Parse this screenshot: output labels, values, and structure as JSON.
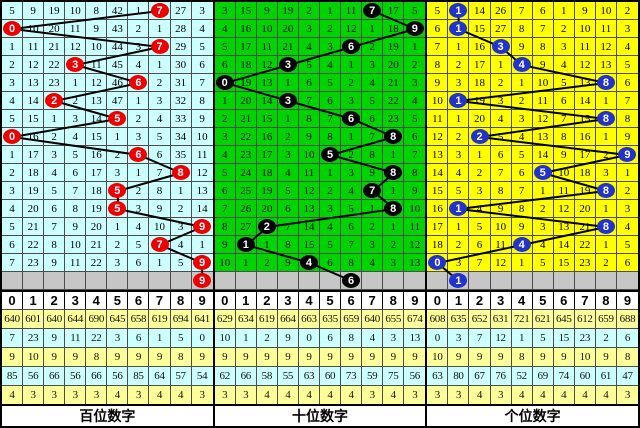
{
  "digit_headers": [
    "0",
    "1",
    "2",
    "3",
    "4",
    "5",
    "6",
    "7",
    "8",
    "9"
  ],
  "colors": {
    "gray_row": "#C6C6C6",
    "stat_yellow": "#FFFF99",
    "stat_cyan": "#CCFFFF",
    "trend_line": "#000000",
    "grid_line": "#4c4c4c",
    "hundreds_bg": "#CCFFFF",
    "tens_bg": "#00D400",
    "units_bg": "#FFFF00",
    "hundreds_circle": "#EE0000",
    "tens_circle": "#000000",
    "units_circle": "#2233CC"
  },
  "chart_data": [
    {
      "type": "line",
      "title": "百位数字 trend",
      "x": [
        1,
        2,
        3,
        4,
        5,
        6,
        7,
        8,
        9,
        10,
        11,
        12,
        13,
        14,
        15,
        16
      ],
      "values": [
        7,
        0,
        7,
        3,
        6,
        2,
        5,
        0,
        6,
        8,
        5,
        5,
        9,
        7,
        9,
        9
      ],
      "ylim": [
        0,
        9
      ],
      "legend_position": "none"
    },
    {
      "type": "line",
      "title": "十位数字 trend",
      "x": [
        1,
        2,
        3,
        4,
        5,
        6,
        7,
        8,
        9,
        10,
        11,
        12,
        13,
        14,
        15,
        16
      ],
      "values": [
        7,
        9,
        6,
        3,
        0,
        3,
        6,
        8,
        5,
        8,
        7,
        8,
        2,
        1,
        4,
        6
      ],
      "ylim": [
        0,
        9
      ],
      "legend_position": "none"
    },
    {
      "type": "line",
      "title": "个位数字 trend",
      "x": [
        1,
        2,
        3,
        4,
        5,
        6,
        7,
        8,
        9,
        10,
        11,
        12,
        13,
        14,
        15,
        16
      ],
      "values": [
        1,
        1,
        3,
        4,
        8,
        1,
        8,
        2,
        9,
        5,
        8,
        1,
        8,
        4,
        0,
        1
      ],
      "ylim": [
        0,
        9
      ],
      "legend_position": "none"
    }
  ],
  "panels": [
    {
      "key": "hundreds",
      "footer": "百位数字",
      "theme": {
        "bg": "#CCFFFF",
        "circle": "#EE0000",
        "circle_text": "#FFFFFF"
      },
      "grid_rows": [
        [
          "5",
          "9",
          "19",
          "10",
          "8",
          "42",
          "1",
          "7",
          "27",
          "3"
        ],
        [
          "0",
          "10",
          "20",
          "11",
          "9",
          "43",
          "2",
          "1",
          "28",
          "4"
        ],
        [
          "1",
          "11",
          "21",
          "12",
          "10",
          "44",
          "3",
          "7",
          "29",
          "5"
        ],
        [
          "2",
          "12",
          "22",
          "3",
          "11",
          "45",
          "4",
          "1",
          "30",
          "6"
        ],
        [
          "3",
          "13",
          "23",
          "1",
          "12",
          "46",
          "6",
          "2",
          "31",
          "7"
        ],
        [
          "4",
          "14",
          "2",
          "2",
          "13",
          "47",
          "1",
          "3",
          "32",
          "8"
        ],
        [
          "5",
          "15",
          "1",
          "3",
          "14",
          "5",
          "2",
          "4",
          "33",
          "9"
        ],
        [
          "0",
          "16",
          "2",
          "4",
          "15",
          "1",
          "3",
          "5",
          "34",
          "10"
        ],
        [
          "1",
          "17",
          "3",
          "5",
          "16",
          "2",
          "6",
          "6",
          "35",
          "11"
        ],
        [
          "2",
          "18",
          "4",
          "6",
          "17",
          "3",
          "1",
          "7",
          "8",
          "12"
        ],
        [
          "3",
          "19",
          "5",
          "7",
          "18",
          "5",
          "2",
          "8",
          "1",
          "13"
        ],
        [
          "4",
          "20",
          "6",
          "8",
          "19",
          "5",
          "3",
          "9",
          "2",
          "14"
        ],
        [
          "5",
          "21",
          "7",
          "9",
          "20",
          "1",
          "4",
          "10",
          "3",
          "9"
        ],
        [
          "6",
          "22",
          "8",
          "10",
          "21",
          "2",
          "5",
          "7",
          "4",
          "1"
        ],
        [
          "7",
          "23",
          "9",
          "11",
          "22",
          "3",
          "6",
          "1",
          "5",
          "9"
        ]
      ],
      "hits": [
        7,
        0,
        7,
        3,
        6,
        2,
        5,
        0,
        6,
        8,
        5,
        5,
        9,
        7,
        9,
        9
      ],
      "stats": [
        [
          "640",
          "601",
          "640",
          "644",
          "690",
          "645",
          "658",
          "619",
          "694",
          "641"
        ],
        [
          "7",
          "23",
          "9",
          "11",
          "22",
          "3",
          "6",
          "1",
          "5",
          "0"
        ],
        [
          "9",
          "10",
          "9",
          "9",
          "8",
          "9",
          "9",
          "9",
          "8",
          "9"
        ],
        [
          "85",
          "56",
          "66",
          "56",
          "66",
          "56",
          "85",
          "64",
          "57",
          "54"
        ],
        [
          "4",
          "3",
          "3",
          "3",
          "3",
          "4",
          "3",
          "4",
          "4",
          "3"
        ]
      ]
    },
    {
      "key": "tens",
      "footer": "十位数字",
      "theme": {
        "bg": "#00D400",
        "circle": "#000000",
        "circle_text": "#FFFFFF"
      },
      "grid_rows": [
        [
          "3",
          "15",
          "9",
          "19",
          "2",
          "1",
          "11",
          "7",
          "17",
          "5"
        ],
        [
          "4",
          "16",
          "10",
          "20",
          "3",
          "2",
          "12",
          "1",
          "18",
          "9"
        ],
        [
          "5",
          "17",
          "11",
          "21",
          "4",
          "3",
          "6",
          "2",
          "19",
          "1"
        ],
        [
          "6",
          "18",
          "12",
          "3",
          "5",
          "4",
          "1",
          "3",
          "20",
          "2"
        ],
        [
          "0",
          "19",
          "13",
          "1",
          "6",
          "5",
          "2",
          "4",
          "21",
          "3"
        ],
        [
          "1",
          "20",
          "14",
          "3",
          "7",
          "6",
          "3",
          "5",
          "22",
          "4"
        ],
        [
          "2",
          "21",
          "15",
          "1",
          "8",
          "7",
          "6",
          "6",
          "23",
          "5"
        ],
        [
          "3",
          "22",
          "16",
          "2",
          "9",
          "8",
          "1",
          "7",
          "8",
          "6"
        ],
        [
          "4",
          "23",
          "17",
          "3",
          "10",
          "5",
          "2",
          "8",
          "1",
          "7"
        ],
        [
          "5",
          "24",
          "18",
          "4",
          "11",
          "1",
          "3",
          "9",
          "8",
          "8"
        ],
        [
          "6",
          "25",
          "19",
          "5",
          "12",
          "2",
          "4",
          "7",
          "1",
          "9"
        ],
        [
          "7",
          "26",
          "20",
          "6",
          "13",
          "3",
          "5",
          "1",
          "8",
          "10"
        ],
        [
          "8",
          "27",
          "2",
          "7",
          "14",
          "4",
          "6",
          "2",
          "1",
          "11"
        ],
        [
          "9",
          "1",
          "1",
          "8",
          "15",
          "5",
          "7",
          "3",
          "2",
          "12"
        ],
        [
          "10",
          "1",
          "2",
          "9",
          "4",
          "6",
          "8",
          "4",
          "3",
          "13"
        ]
      ],
      "hits": [
        7,
        9,
        6,
        3,
        0,
        3,
        6,
        8,
        5,
        8,
        7,
        8,
        2,
        1,
        4,
        6
      ],
      "stats": [
        [
          "629",
          "634",
          "619",
          "664",
          "663",
          "635",
          "659",
          "640",
          "655",
          "674"
        ],
        [
          "10",
          "1",
          "2",
          "9",
          "0",
          "6",
          "8",
          "4",
          "3",
          "13"
        ],
        [
          "9",
          "9",
          "9",
          "9",
          "9",
          "9",
          "9",
          "9",
          "9",
          "9"
        ],
        [
          "62",
          "66",
          "58",
          "55",
          "63",
          "60",
          "73",
          "59",
          "75",
          "56"
        ],
        [
          "3",
          "3",
          "4",
          "4",
          "4",
          "4",
          "4",
          "3",
          "4",
          "3"
        ]
      ]
    },
    {
      "key": "units",
      "footer": "个位数字",
      "theme": {
        "bg": "#FFFF00",
        "circle": "#2233CC",
        "circle_text": "#FFFFFF"
      },
      "grid_rows": [
        [
          "5",
          "1",
          "14",
          "26",
          "7",
          "6",
          "1",
          "9",
          "10",
          "2"
        ],
        [
          "6",
          "1",
          "15",
          "27",
          "8",
          "7",
          "2",
          "10",
          "11",
          "3"
        ],
        [
          "7",
          "1",
          "16",
          "3",
          "9",
          "8",
          "3",
          "11",
          "12",
          "4"
        ],
        [
          "8",
          "2",
          "17",
          "1",
          "4",
          "9",
          "4",
          "12",
          "13",
          "5"
        ],
        [
          "9",
          "3",
          "18",
          "2",
          "1",
          "10",
          "5",
          "13",
          "8",
          "6"
        ],
        [
          "10",
          "1",
          "19",
          "3",
          "2",
          "11",
          "6",
          "14",
          "1",
          "7"
        ],
        [
          "11",
          "1",
          "20",
          "4",
          "3",
          "12",
          "7",
          "15",
          "8",
          "8"
        ],
        [
          "12",
          "2",
          "2",
          "5",
          "4",
          "13",
          "8",
          "16",
          "1",
          "9"
        ],
        [
          "13",
          "3",
          "1",
          "6",
          "5",
          "14",
          "9",
          "17",
          "2",
          "9"
        ],
        [
          "14",
          "4",
          "2",
          "7",
          "6",
          "5",
          "10",
          "18",
          "3",
          "1"
        ],
        [
          "15",
          "5",
          "3",
          "8",
          "7",
          "1",
          "11",
          "19",
          "8",
          "2"
        ],
        [
          "16",
          "1",
          "4",
          "9",
          "8",
          "2",
          "12",
          "20",
          "1",
          "3"
        ],
        [
          "17",
          "1",
          "5",
          "10",
          "9",
          "3",
          "13",
          "21",
          "8",
          "4"
        ],
        [
          "18",
          "2",
          "6",
          "11",
          "4",
          "4",
          "14",
          "22",
          "1",
          "5"
        ],
        [
          "0",
          "3",
          "7",
          "12",
          "1",
          "5",
          "15",
          "23",
          "2",
          "6"
        ]
      ],
      "hits": [
        1,
        1,
        3,
        4,
        8,
        1,
        8,
        2,
        9,
        5,
        8,
        1,
        8,
        4,
        0,
        1
      ],
      "stats": [
        [
          "608",
          "635",
          "652",
          "631",
          "721",
          "621",
          "645",
          "612",
          "659",
          "688"
        ],
        [
          "0",
          "3",
          "7",
          "12",
          "1",
          "5",
          "15",
          "23",
          "2",
          "6"
        ],
        [
          "10",
          "9",
          "9",
          "9",
          "8",
          "9",
          "9",
          "10",
          "9",
          "8"
        ],
        [
          "63",
          "80",
          "67",
          "76",
          "52",
          "69",
          "74",
          "60",
          "61",
          "47"
        ],
        [
          "3",
          "3",
          "4",
          "3",
          "4",
          "4",
          "4",
          "4",
          "4",
          "3"
        ]
      ]
    }
  ]
}
